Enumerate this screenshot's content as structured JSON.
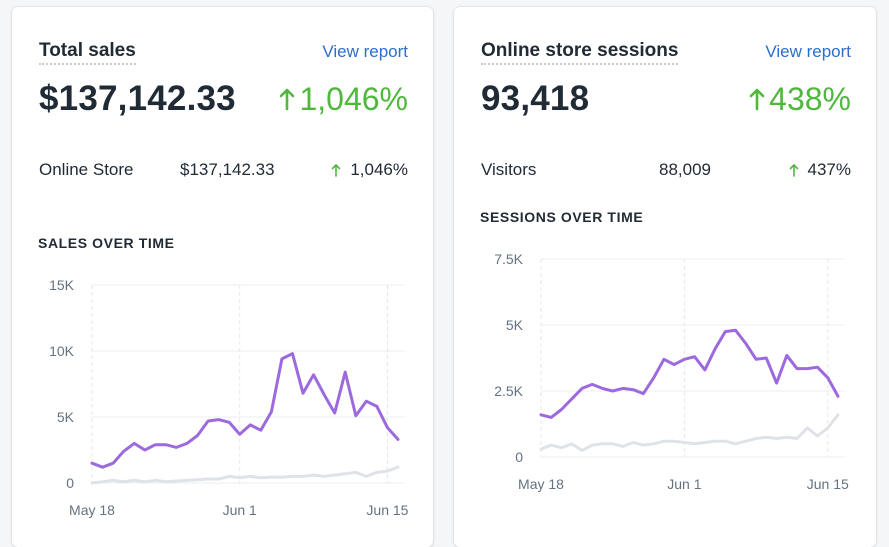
{
  "cards": [
    {
      "title": "Total sales",
      "view_link": "View report",
      "value": "$137,142.33",
      "change": "1,046%",
      "row": {
        "label": "Online Store",
        "value": "$137,142.33",
        "change": "1,046%"
      },
      "section_title": "SALES OVER TIME",
      "chart_data": {
        "type": "line",
        "title": "",
        "xlabel": "",
        "ylabel": "",
        "y_ticks": [
          "0",
          "5K",
          "10K",
          "15K"
        ],
        "y_tick_values": [
          0,
          5000,
          10000,
          15000
        ],
        "ylim": [
          0,
          15000
        ],
        "x_ticks": [
          "May 18",
          "Jun 1",
          "Jun 15"
        ],
        "x_tick_index": [
          0,
          14,
          28
        ],
        "grid": true,
        "series": [
          {
            "color": "#9c6ade",
            "values": [
              1500,
              1200,
              1500,
              2400,
              3000,
              2500,
              2900,
              2900,
              2700,
              3000,
              3600,
              4700,
              4800,
              4600,
              3700,
              4400,
              4000,
              5400,
              9400,
              9800,
              6800,
              8200,
              6700,
              5300,
              8400,
              5100,
              6200,
              5800,
              4200,
              3300
            ]
          },
          {
            "color": "#dfe3e8",
            "values": [
              0,
              100,
              200,
              100,
              200,
              100,
              200,
              100,
              150,
              200,
              250,
              300,
              300,
              500,
              400,
              500,
              400,
              450,
              450,
              500,
              500,
              600,
              500,
              600,
              700,
              800,
              500,
              800,
              900,
              1200
            ]
          }
        ]
      }
    },
    {
      "title": "Online store sessions",
      "view_link": "View report",
      "value": "93,418",
      "change": "438%",
      "row": {
        "label": "Visitors",
        "value": "88,009",
        "change": "437%"
      },
      "section_title": "SESSIONS OVER TIME",
      "chart_data": {
        "type": "line",
        "title": "",
        "xlabel": "",
        "ylabel": "",
        "y_ticks": [
          "0",
          "2.5K",
          "5K",
          "7.5K"
        ],
        "y_tick_values": [
          0,
          2500,
          5000,
          7500
        ],
        "ylim": [
          0,
          7500
        ],
        "x_ticks": [
          "May 18",
          "Jun 1",
          "Jun 15"
        ],
        "x_tick_index": [
          0,
          14,
          28
        ],
        "grid": true,
        "series": [
          {
            "color": "#9c6ade",
            "values": [
              1600,
              1500,
              1800,
              2200,
              2600,
              2750,
              2600,
              2500,
              2600,
              2550,
              2400,
              3000,
              3700,
              3500,
              3700,
              3800,
              3300,
              4100,
              4750,
              4800,
              4300,
              3700,
              3750,
              2800,
              3850,
              3350,
              3350,
              3400,
              3000,
              2300
            ]
          },
          {
            "color": "#dfe3e8",
            "values": [
              300,
              450,
              350,
              500,
              250,
              450,
              500,
              500,
              400,
              550,
              450,
              500,
              600,
              600,
              550,
              500,
              550,
              600,
              600,
              500,
              600,
              700,
              750,
              700,
              750,
              700,
              1100,
              800,
              1100,
              1600
            ]
          }
        ]
      }
    }
  ]
}
